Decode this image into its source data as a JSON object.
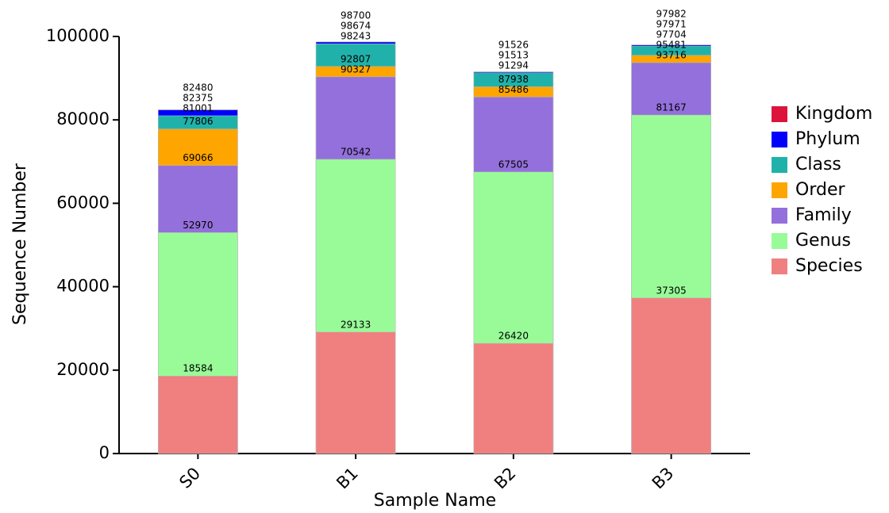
{
  "chart_data": {
    "type": "bar",
    "x_label": "Sample Name",
    "y_label": "Sequence Number",
    "categories": [
      "S0",
      "B1",
      "B2",
      "B3"
    ],
    "series": [
      {
        "name": "Kingdom",
        "color": "#dc143c",
        "values": [
          82480,
          98700,
          91526,
          97982
        ]
      },
      {
        "name": "Phylum",
        "color": "#0000ff",
        "values": [
          82375,
          98674,
          91513,
          97971
        ]
      },
      {
        "name": "Class",
        "color": "#20b2aa",
        "values": [
          81001,
          98243,
          91294,
          97704
        ]
      },
      {
        "name": "Order",
        "color": "#ffa500",
        "values": [
          77806,
          92807,
          87938,
          95481
        ]
      },
      {
        "name": "Family",
        "color": "#9370db",
        "values": [
          69066,
          90327,
          85486,
          93716
        ]
      },
      {
        "name": "Genus",
        "color": "#98fb98",
        "values": [
          52970,
          70542,
          67505,
          81167
        ]
      },
      {
        "name": "Species",
        "color": "#f08080",
        "values": [
          18584,
          29133,
          26420,
          37305
        ]
      }
    ],
    "ylim": [
      0,
      100000
    ],
    "yticks": [
      0,
      20000,
      40000,
      60000,
      80000,
      100000
    ],
    "legend": "right"
  }
}
